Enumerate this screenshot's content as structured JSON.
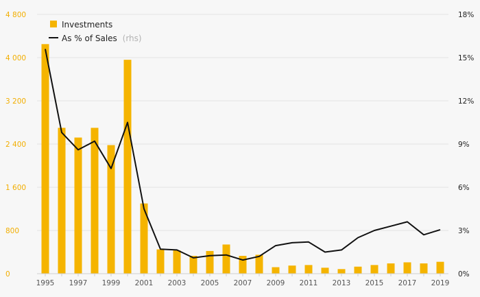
{
  "chart_data": {
    "type": "bar",
    "x": [
      1995,
      1996,
      1997,
      1998,
      1999,
      2000,
      2001,
      2002,
      2003,
      2004,
      2005,
      2006,
      2007,
      2008,
      2009,
      2010,
      2011,
      2012,
      2013,
      2014,
      2015,
      2016,
      2017,
      2018,
      2019
    ],
    "x_tick_labels": [
      "1995",
      "1997",
      "1999",
      "2001",
      "2003",
      "2005",
      "2007",
      "2009",
      "2011",
      "2013",
      "2015",
      "2017",
      "2019"
    ],
    "series": [
      {
        "name": "Investments",
        "axis": "left",
        "kind": "bar",
        "values": [
          4250,
          2700,
          2520,
          2700,
          2380,
          3960,
          1300,
          450,
          430,
          330,
          420,
          540,
          330,
          350,
          120,
          150,
          160,
          110,
          85,
          130,
          160,
          190,
          210,
          190,
          220
        ]
      },
      {
        "name": "As % of Sales",
        "name_suffix": "(rhs)",
        "axis": "right",
        "kind": "line",
        "values": [
          15.6,
          9.8,
          8.6,
          9.2,
          7.3,
          10.5,
          4.5,
          1.7,
          1.65,
          1.1,
          1.25,
          1.3,
          0.95,
          1.2,
          1.95,
          2.15,
          2.2,
          1.5,
          1.65,
          2.5,
          3.0,
          3.3,
          3.6,
          2.7,
          3.05
        ]
      }
    ],
    "y_left": {
      "min": 0,
      "max": 4800,
      "ticks": [
        "0",
        "800",
        "1 600",
        "2 400",
        "3 200",
        "4 000",
        "4 800"
      ],
      "tick_values": [
        0,
        800,
        1600,
        2400,
        3200,
        4000,
        4800
      ]
    },
    "y_right": {
      "min": 0,
      "max": 18,
      "ticks": [
        "0%",
        "3%",
        "6%",
        "9%",
        "12%",
        "15%",
        "18%"
      ],
      "tick_values": [
        0,
        3,
        6,
        9,
        12,
        15,
        18
      ]
    },
    "grid": true,
    "legend_position": "top-left",
    "colors": {
      "bar": "#f5b400",
      "line": "#111111",
      "left_axis_text": "#f2ae00",
      "right_axis_text": "#222222",
      "grid": "#e3e3e3",
      "legend_muted": "#b3b3b3"
    }
  }
}
